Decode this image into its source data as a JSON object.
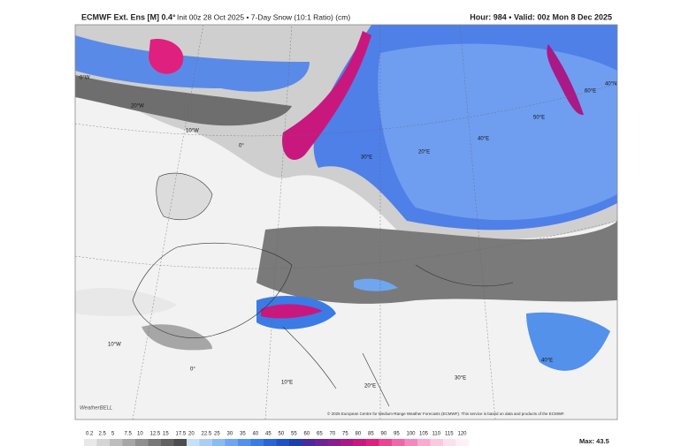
{
  "header": {
    "model": "ECMWF Ext. Ens [M] 0.4°",
    "init": "Init 00z 28 Oct 2025 • 7-Day Snow (10:1 Ratio) (cm)",
    "valid": "Hour: 984 • Valid: 00z Mon 8 Dec 2025"
  },
  "map": {
    "labels": [
      "0°W",
      "20°W",
      "10°W",
      "0°",
      "20°E",
      "30°E",
      "40°E",
      "50°E",
      "60°E",
      "40°N",
      "10°W",
      "0°",
      "10°E",
      "20°E",
      "30°E",
      "40°E"
    ],
    "credit": "© 2025 European Centre for Medium-Range Weather Forecasts (ECMWF). This service is based on data and products of the ECMWF.",
    "logo": "WeatherBELL"
  },
  "legend": {
    "ticks": [
      "0.2",
      "2.5",
      "5",
      "7.5",
      "10",
      "12.5",
      "15",
      "17.5",
      "20",
      "22.5",
      "25",
      "30",
      "35",
      "40",
      "45",
      "50",
      "55",
      "60",
      "65",
      "70",
      "75",
      "80",
      "85",
      "90",
      "95",
      "100",
      "105",
      "110",
      "115",
      "120"
    ],
    "colors": [
      "#e8e8e8",
      "#d4d4d4",
      "#bdbdbd",
      "#a6a6a6",
      "#8f8f8f",
      "#787878",
      "#626262",
      "#4d4d4d",
      "#c6e0fb",
      "#a9cdf7",
      "#8cbaf3",
      "#6fa6ef",
      "#5391eb",
      "#3b7be6",
      "#2a64dc",
      "#2050c8",
      "#1c3fae",
      "#4a2a9e",
      "#6a2496",
      "#8a1e8e",
      "#aa1a86",
      "#c8187e",
      "#e0207e",
      "#ec4492",
      "#f066a8",
      "#f488bc",
      "#f8aad0",
      "#fbc8e0",
      "#fde0ee",
      "#fff0f7"
    ],
    "max": "Max: 43.5"
  }
}
